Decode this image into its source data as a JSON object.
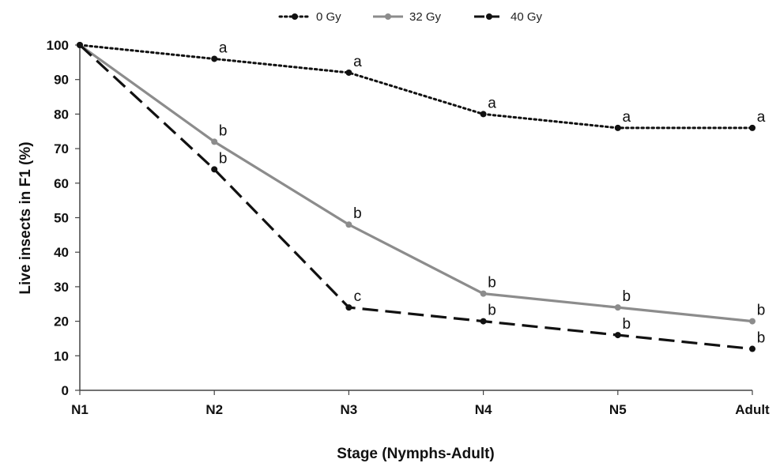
{
  "chart_data": {
    "type": "line",
    "title": "",
    "xlabel": "Stage (Nymphs-Adult)",
    "ylabel": "Live insects in F1  (%)",
    "categories": [
      "N1",
      "N2",
      "N3",
      "N4",
      "N5",
      "Adult"
    ],
    "ylim": [
      0,
      100
    ],
    "yticks": [
      0,
      10,
      20,
      30,
      40,
      50,
      60,
      70,
      80,
      90,
      100
    ],
    "grid": false,
    "legend_position": "top",
    "series": [
      {
        "name": "0 Gy",
        "values": [
          100,
          96,
          92,
          80,
          76,
          76
        ],
        "letters": [
          "",
          "a",
          "a",
          "a",
          "a",
          "a"
        ],
        "color": "#111111",
        "style": "dotted"
      },
      {
        "name": "32 Gy",
        "values": [
          100,
          72,
          48,
          28,
          24,
          20
        ],
        "letters": [
          "",
          "b",
          "b",
          "b",
          "b",
          "b"
        ],
        "color": "#8c8c8c",
        "style": "solid"
      },
      {
        "name": "40 Gy",
        "values": [
          100,
          64,
          24,
          20,
          16,
          12
        ],
        "letters": [
          "",
          "b",
          "c",
          "b",
          "b",
          "b"
        ],
        "color": "#111111",
        "style": "dashed"
      }
    ]
  }
}
